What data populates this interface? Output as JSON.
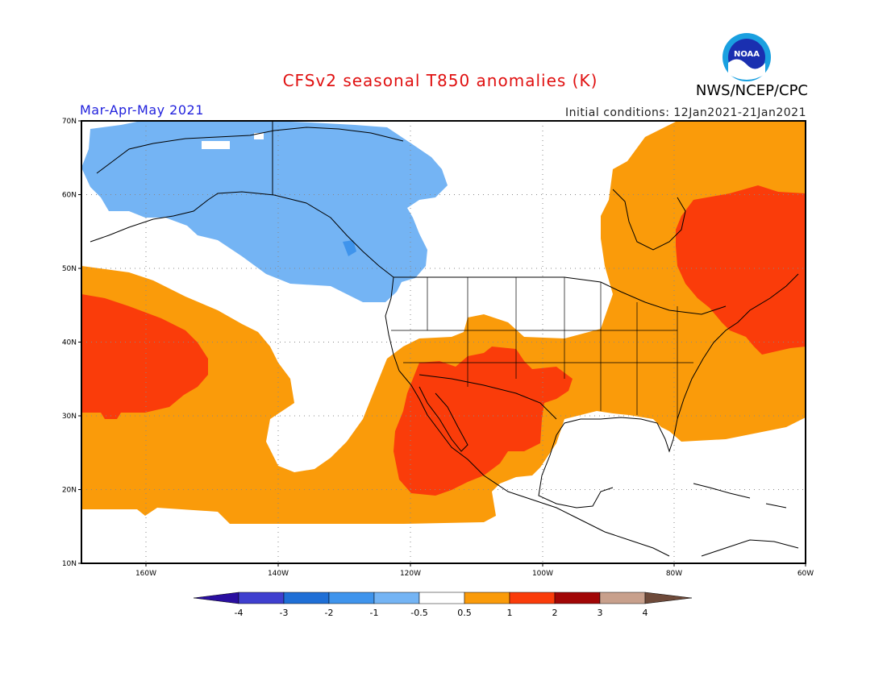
{
  "title": "CFSv2 seasonal T850 anomalies (K)",
  "organization": "NWS/NCEP/CPC",
  "logo_text": "NOAA",
  "season": "Mar-Apr-May 2021",
  "initial_conditions": "Initial conditions: 12Jan2021-21Jan2021",
  "map": {
    "lat_labels": [
      "70N",
      "60N",
      "50N",
      "40N",
      "30N",
      "20N",
      "10N"
    ],
    "lon_labels": [
      "160W",
      "140W",
      "120W",
      "100W",
      "80W",
      "60W"
    ]
  },
  "legend": {
    "labels": [
      "-4",
      "-3",
      "-2",
      "-1",
      "-0.5",
      "0.5",
      "1",
      "2",
      "3",
      "4"
    ],
    "colors": [
      "#2a0fa0",
      "#3f3fcf",
      "#1f6fd6",
      "#3f94ec",
      "#74b4f4",
      "#ffffff",
      "#fa9b0a",
      "#fa3c0a",
      "#a10606",
      "#c8a08c",
      "#6e4a3a"
    ]
  }
}
